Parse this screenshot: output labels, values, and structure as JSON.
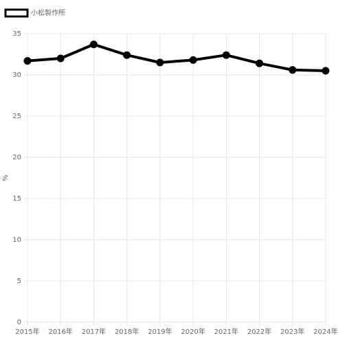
{
  "chart_data": {
    "type": "line",
    "categories": [
      "2015年",
      "2016年",
      "2017年",
      "2018年",
      "2019年",
      "2020年",
      "2021年",
      "2022年",
      "2023年",
      "2024年"
    ],
    "series": [
      {
        "name": "小松製作所",
        "color": "#000000",
        "values": [
          31.7,
          32.0,
          33.7,
          32.4,
          31.5,
          31.8,
          32.4,
          31.4,
          30.6,
          30.5
        ]
      }
    ],
    "y_label": "%",
    "ylim": [
      0,
      35
    ],
    "yticks": [
      0,
      5,
      10,
      15,
      20,
      25,
      30,
      35
    ],
    "grid": true,
    "legend": "top-left"
  }
}
